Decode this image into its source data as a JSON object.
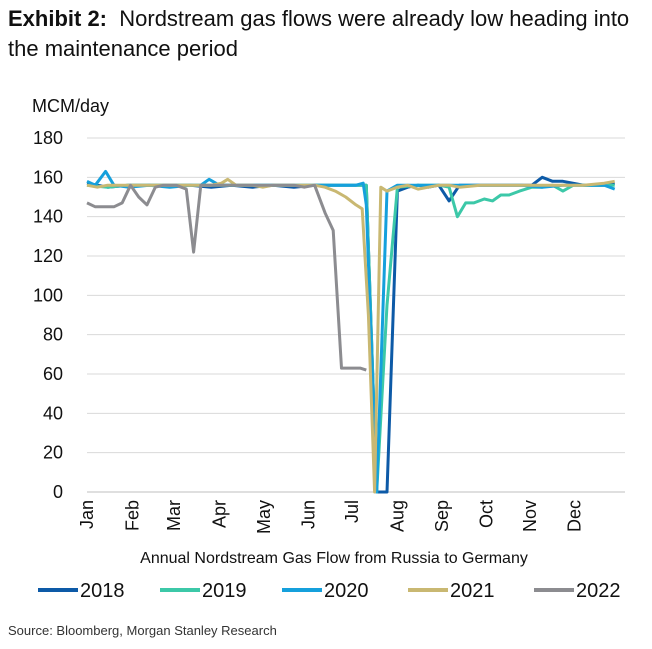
{
  "header": {
    "exhibit_label": "Exhibit 2:",
    "title": "Nordstream gas flows were already low heading into the maintenance period"
  },
  "footer": {
    "source": "Source: Bloomberg, Morgan Stanley Research"
  },
  "chart_data": {
    "type": "line",
    "title": "Nordstream gas flows were already low heading into the maintenance period",
    "ylabel": "MCM/day",
    "xlabel": "Annual Nordstream Gas Flow from Russia to Germany",
    "ylim": [
      0,
      180
    ],
    "yticks": [
      0,
      20,
      40,
      60,
      80,
      100,
      120,
      140,
      160,
      180
    ],
    "xlim": [
      0,
      52
    ],
    "xtick_positions": [
      0,
      4.4,
      8.4,
      12.8,
      17.1,
      21.4,
      25.6,
      30,
      34.3,
      38.6,
      42.8,
      47.1
    ],
    "month_labels": [
      "Jan",
      "Feb",
      "Mar",
      "Apr",
      "May",
      "Jun",
      "Jul",
      "Aug",
      "Sep",
      "Oct",
      "Nov",
      "Dec"
    ],
    "grid": true,
    "legend_position": "bottom",
    "series": [
      {
        "name": "2018",
        "color": "#0d5aa7",
        "points": [
          [
            0,
            157
          ],
          [
            2,
            155
          ],
          [
            4,
            156
          ],
          [
            6,
            156
          ],
          [
            8,
            156
          ],
          [
            10,
            156
          ],
          [
            12,
            155
          ],
          [
            14,
            156
          ],
          [
            16,
            155
          ],
          [
            18,
            156
          ],
          [
            20,
            155
          ],
          [
            22,
            156
          ],
          [
            24,
            156
          ],
          [
            26,
            156
          ],
          [
            27,
            156
          ],
          [
            28,
            0
          ],
          [
            29,
            0
          ],
          [
            30,
            153
          ],
          [
            31,
            155
          ],
          [
            32,
            156
          ],
          [
            33,
            155
          ],
          [
            34,
            156
          ],
          [
            35,
            148
          ],
          [
            36,
            156
          ],
          [
            38,
            156
          ],
          [
            40,
            156
          ],
          [
            42,
            156
          ],
          [
            43,
            156
          ],
          [
            44,
            160
          ],
          [
            45,
            158
          ],
          [
            46,
            158
          ],
          [
            48,
            156
          ],
          [
            50,
            156
          ],
          [
            51,
            157
          ]
        ]
      },
      {
        "name": "2019",
        "color": "#3cc8a8",
        "points": [
          [
            0,
            156
          ],
          [
            2,
            155
          ],
          [
            4,
            156
          ],
          [
            6,
            156
          ],
          [
            8,
            156
          ],
          [
            10,
            156
          ],
          [
            12,
            156
          ],
          [
            14,
            156
          ],
          [
            16,
            156
          ],
          [
            18,
            156
          ],
          [
            20,
            156
          ],
          [
            22,
            156
          ],
          [
            24,
            156
          ],
          [
            26,
            156
          ],
          [
            27,
            156
          ],
          [
            28,
            0
          ],
          [
            29,
            95
          ],
          [
            30,
            155
          ],
          [
            32,
            156
          ],
          [
            34,
            156
          ],
          [
            35,
            155
          ],
          [
            35.8,
            140
          ],
          [
            36.6,
            147
          ],
          [
            37.4,
            147
          ],
          [
            38.4,
            149
          ],
          [
            39.2,
            148
          ],
          [
            40,
            151
          ],
          [
            40.8,
            151
          ],
          [
            41.8,
            153
          ],
          [
            43,
            155
          ],
          [
            44,
            155
          ],
          [
            45,
            156
          ],
          [
            46,
            153
          ],
          [
            47,
            156
          ],
          [
            48,
            156
          ],
          [
            50,
            156
          ],
          [
            51,
            156
          ]
        ]
      },
      {
        "name": "2020",
        "color": "#15a0dc",
        "points": [
          [
            0,
            158
          ],
          [
            0.8,
            156
          ],
          [
            1.8,
            163
          ],
          [
            2.6,
            156
          ],
          [
            4,
            155
          ],
          [
            6,
            156
          ],
          [
            8,
            155
          ],
          [
            10,
            156
          ],
          [
            11,
            156
          ],
          [
            11.8,
            159
          ],
          [
            12.8,
            156
          ],
          [
            14,
            156
          ],
          [
            16,
            156
          ],
          [
            18,
            156
          ],
          [
            20,
            156
          ],
          [
            22,
            156
          ],
          [
            24,
            156
          ],
          [
            26,
            156
          ],
          [
            26.7,
            157
          ],
          [
            27,
            146
          ],
          [
            28,
            0
          ],
          [
            29,
            153
          ],
          [
            30,
            156
          ],
          [
            32,
            156
          ],
          [
            34,
            156
          ],
          [
            36,
            156
          ],
          [
            38,
            156
          ],
          [
            40,
            156
          ],
          [
            42,
            156
          ],
          [
            44,
            155
          ],
          [
            46,
            156
          ],
          [
            48,
            156
          ],
          [
            50,
            156
          ],
          [
            51,
            154
          ]
        ]
      },
      {
        "name": "2021",
        "color": "#c9b872",
        "points": [
          [
            0,
            156
          ],
          [
            1,
            155
          ],
          [
            2,
            156
          ],
          [
            4,
            156
          ],
          [
            6,
            156
          ],
          [
            8,
            156
          ],
          [
            10,
            156
          ],
          [
            12,
            156
          ],
          [
            13,
            157
          ],
          [
            13.6,
            159
          ],
          [
            14.4,
            156
          ],
          [
            16,
            156
          ],
          [
            17,
            155
          ],
          [
            18,
            156
          ],
          [
            20,
            156
          ],
          [
            22,
            156
          ],
          [
            23,
            155
          ],
          [
            24,
            153
          ],
          [
            25,
            150
          ],
          [
            26,
            146
          ],
          [
            26.6,
            144
          ],
          [
            27.2,
            90
          ],
          [
            27.8,
            0
          ],
          [
            28.4,
            155
          ],
          [
            29,
            153
          ],
          [
            30,
            155
          ],
          [
            31,
            156
          ],
          [
            32,
            154
          ],
          [
            34,
            156
          ],
          [
            35,
            156
          ],
          [
            36,
            155
          ],
          [
            38,
            156
          ],
          [
            40,
            156
          ],
          [
            42,
            156
          ],
          [
            44,
            156
          ],
          [
            46,
            156
          ],
          [
            48,
            156
          ],
          [
            50,
            157
          ],
          [
            51,
            158
          ]
        ]
      },
      {
        "name": "2022",
        "color": "#8c8c90",
        "points": [
          [
            0,
            147
          ],
          [
            0.8,
            145
          ],
          [
            1.6,
            145
          ],
          [
            2.6,
            145
          ],
          [
            3.4,
            147
          ],
          [
            4.2,
            156
          ],
          [
            5,
            150
          ],
          [
            5.8,
            146
          ],
          [
            6.6,
            155
          ],
          [
            7.4,
            156
          ],
          [
            8.6,
            156
          ],
          [
            9.6,
            154
          ],
          [
            10.3,
            122
          ],
          [
            11,
            156
          ],
          [
            12,
            156
          ],
          [
            14,
            156
          ],
          [
            16,
            156
          ],
          [
            18,
            156
          ],
          [
            20,
            156
          ],
          [
            21,
            155
          ],
          [
            22,
            156
          ],
          [
            23,
            142
          ],
          [
            23.8,
            133
          ],
          [
            24.6,
            63
          ],
          [
            25.4,
            63
          ],
          [
            26.4,
            63
          ],
          [
            27,
            62
          ]
        ]
      }
    ]
  }
}
